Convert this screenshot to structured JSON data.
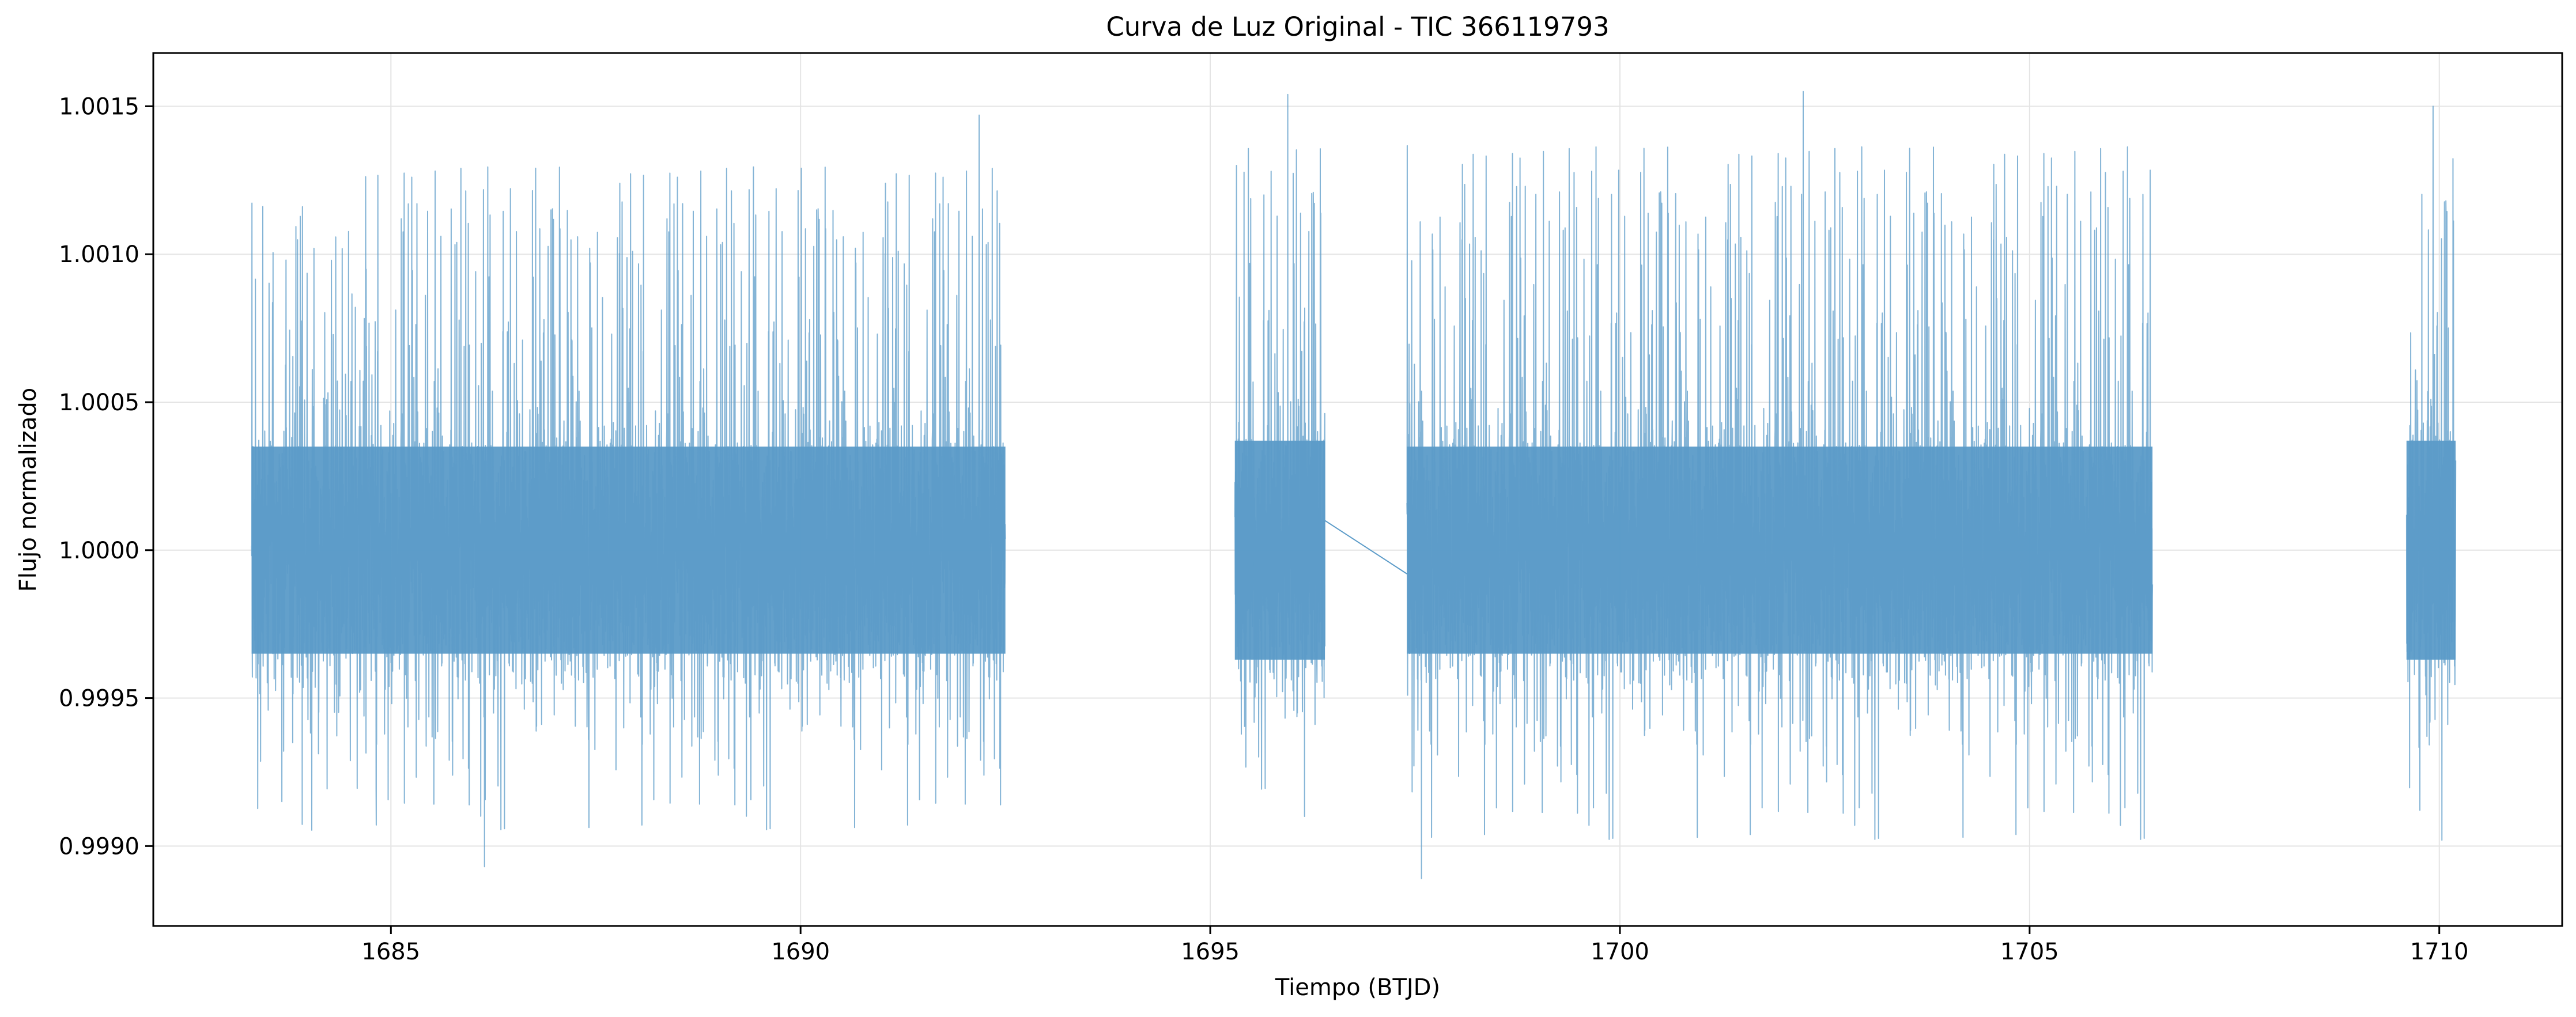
{
  "chart_data": {
    "type": "line",
    "title": "Curva de Luz Original - TIC 366119793",
    "xlabel": "Tiempo (BTJD)",
    "ylabel": "Flujo normalizado",
    "xlim": [
      1682.1,
      1711.5
    ],
    "ylim": [
      0.99873,
      1.00168
    ],
    "x_ticks": [
      1685,
      1690,
      1695,
      1700,
      1705,
      1710
    ],
    "x_tick_labels": [
      "1685",
      "1690",
      "1695",
      "1700",
      "1705",
      "1710"
    ],
    "y_ticks": [
      0.999,
      0.9995,
      1.0,
      1.0005,
      1.001,
      1.0015
    ],
    "y_tick_labels": [
      "0.9990",
      "0.9995",
      "1.0000",
      "1.0005",
      "1.0010",
      "1.0015"
    ],
    "grid": true,
    "line_color": "#5b9bc8",
    "series": [
      {
        "segments": [
          {
            "x_start": 1683.3,
            "x_end": 1692.5,
            "center": 1.0,
            "band_low": 0.99965,
            "band_high": 1.00035,
            "min": 0.99893,
            "max": 1.00147
          },
          {
            "x_start": 1695.3,
            "x_end": 1696.4,
            "center": 1.0,
            "band_low": 0.99963,
            "band_high": 1.00037,
            "min": 0.9991,
            "max": 1.00154
          },
          {
            "x_start": 1697.4,
            "x_end": 1706.5,
            "center": 1.0,
            "band_low": 0.99965,
            "band_high": 1.00035,
            "min": 0.99889,
            "max": 1.00155
          },
          {
            "x_start": 1709.6,
            "x_end": 1710.2,
            "center": 1.0,
            "band_low": 0.99963,
            "band_high": 1.00037,
            "min": 0.99902,
            "max": 1.0015
          }
        ],
        "connector": {
          "from": [
            1696.4,
            1.0001
          ],
          "to": [
            1697.4,
            0.99992
          ]
        }
      }
    ]
  }
}
